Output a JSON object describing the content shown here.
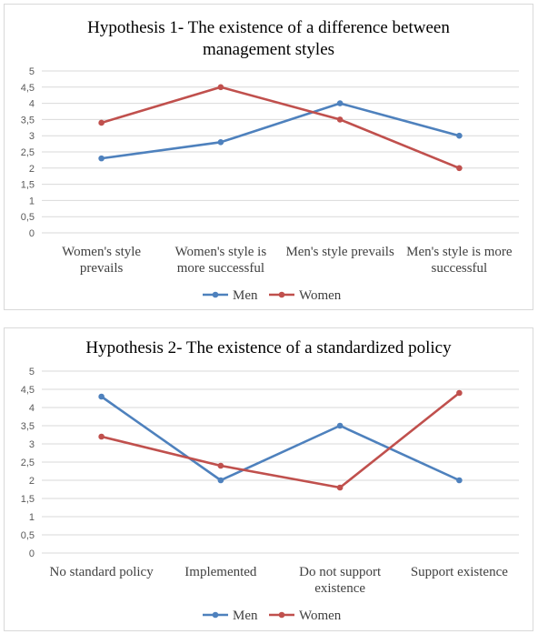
{
  "chart_data": [
    {
      "type": "line",
      "title_line1": "Hypothesis 1- The existence of a difference between",
      "title_line2": "management styles",
      "categories": [
        [
          "Women's style",
          "prevails"
        ],
        [
          "Women's style is",
          "more successful"
        ],
        [
          "Men's style prevails"
        ],
        [
          "Men's style is more",
          "successful"
        ]
      ],
      "series": [
        {
          "name": "Men",
          "values": [
            2.3,
            2.8,
            4.0,
            3.0
          ],
          "color": "#4e81bd"
        },
        {
          "name": "Women",
          "values": [
            3.4,
            4.5,
            3.5,
            2.0
          ],
          "color": "#c0504d"
        }
      ],
      "ylim": [
        0,
        5
      ],
      "yticks": [
        "0",
        "0,5",
        "1",
        "1,5",
        "2",
        "2,5",
        "3",
        "3,5",
        "4",
        "4,5",
        "5"
      ],
      "grid": true,
      "legend": "bottom"
    },
    {
      "type": "line",
      "title_line1": "Hypothesis 2- The existence of a standardized policy",
      "categories": [
        [
          "No standard policy"
        ],
        [
          "Implemented"
        ],
        [
          "Do not support",
          "existence"
        ],
        [
          "Support existence"
        ]
      ],
      "series": [
        {
          "name": "Men",
          "values": [
            4.3,
            2.0,
            3.5,
            2.0
          ],
          "color": "#4e81bd"
        },
        {
          "name": "Women",
          "values": [
            3.2,
            2.4,
            1.8,
            4.4
          ],
          "color": "#c0504d"
        }
      ],
      "ylim": [
        0,
        5
      ],
      "yticks": [
        "0",
        "0,5",
        "1",
        "1,5",
        "2",
        "2,5",
        "3",
        "3,5",
        "4",
        "4,5",
        "5"
      ],
      "grid": true,
      "legend": "bottom"
    }
  ]
}
